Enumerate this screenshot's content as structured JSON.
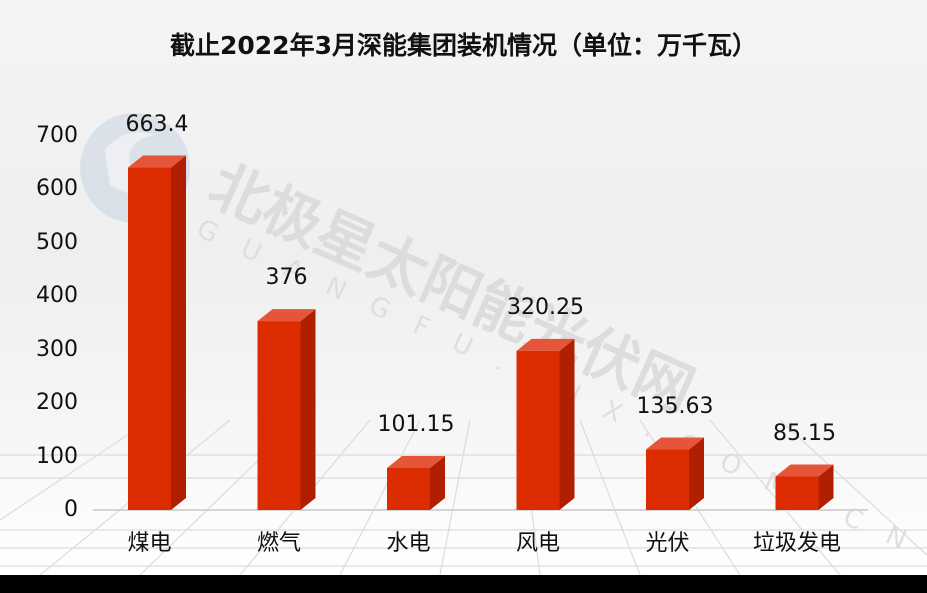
{
  "title": "截止2022年3月深能集团装机情况（单位：万千瓦）",
  "watermark": {
    "text": "北极星太阳能光伏网",
    "subtext": "GUANGFU.BJX.COM.CN"
  },
  "colors": {
    "bar_front": "#dc2c00",
    "bar_side": "#b02000",
    "bar_top": "#e5553a",
    "axis_text": "#111111",
    "baseline": "#d4d4d4"
  },
  "y_axis": {
    "ticks": [
      "0",
      "100",
      "200",
      "300",
      "400",
      "500",
      "600",
      "700"
    ]
  },
  "chart_data": {
    "type": "bar",
    "title": "截止2022年3月深能集团装机情况（单位：万千瓦）",
    "categories": [
      "煤电",
      "燃气",
      "水电",
      "风电",
      "光伏",
      "垃圾发电"
    ],
    "values": [
      663.4,
      376,
      101.15,
      320.25,
      135.63,
      85.15
    ],
    "value_labels": [
      "663.4",
      "376",
      "101.15",
      "320.25",
      "135.63",
      "85.15"
    ],
    "xlabel": "",
    "ylabel": "",
    "ylim": [
      0,
      700
    ],
    "yticks": [
      0,
      100,
      200,
      300,
      400,
      500,
      600,
      700
    ],
    "grid": false,
    "legend": "none",
    "style": "3d-column"
  }
}
